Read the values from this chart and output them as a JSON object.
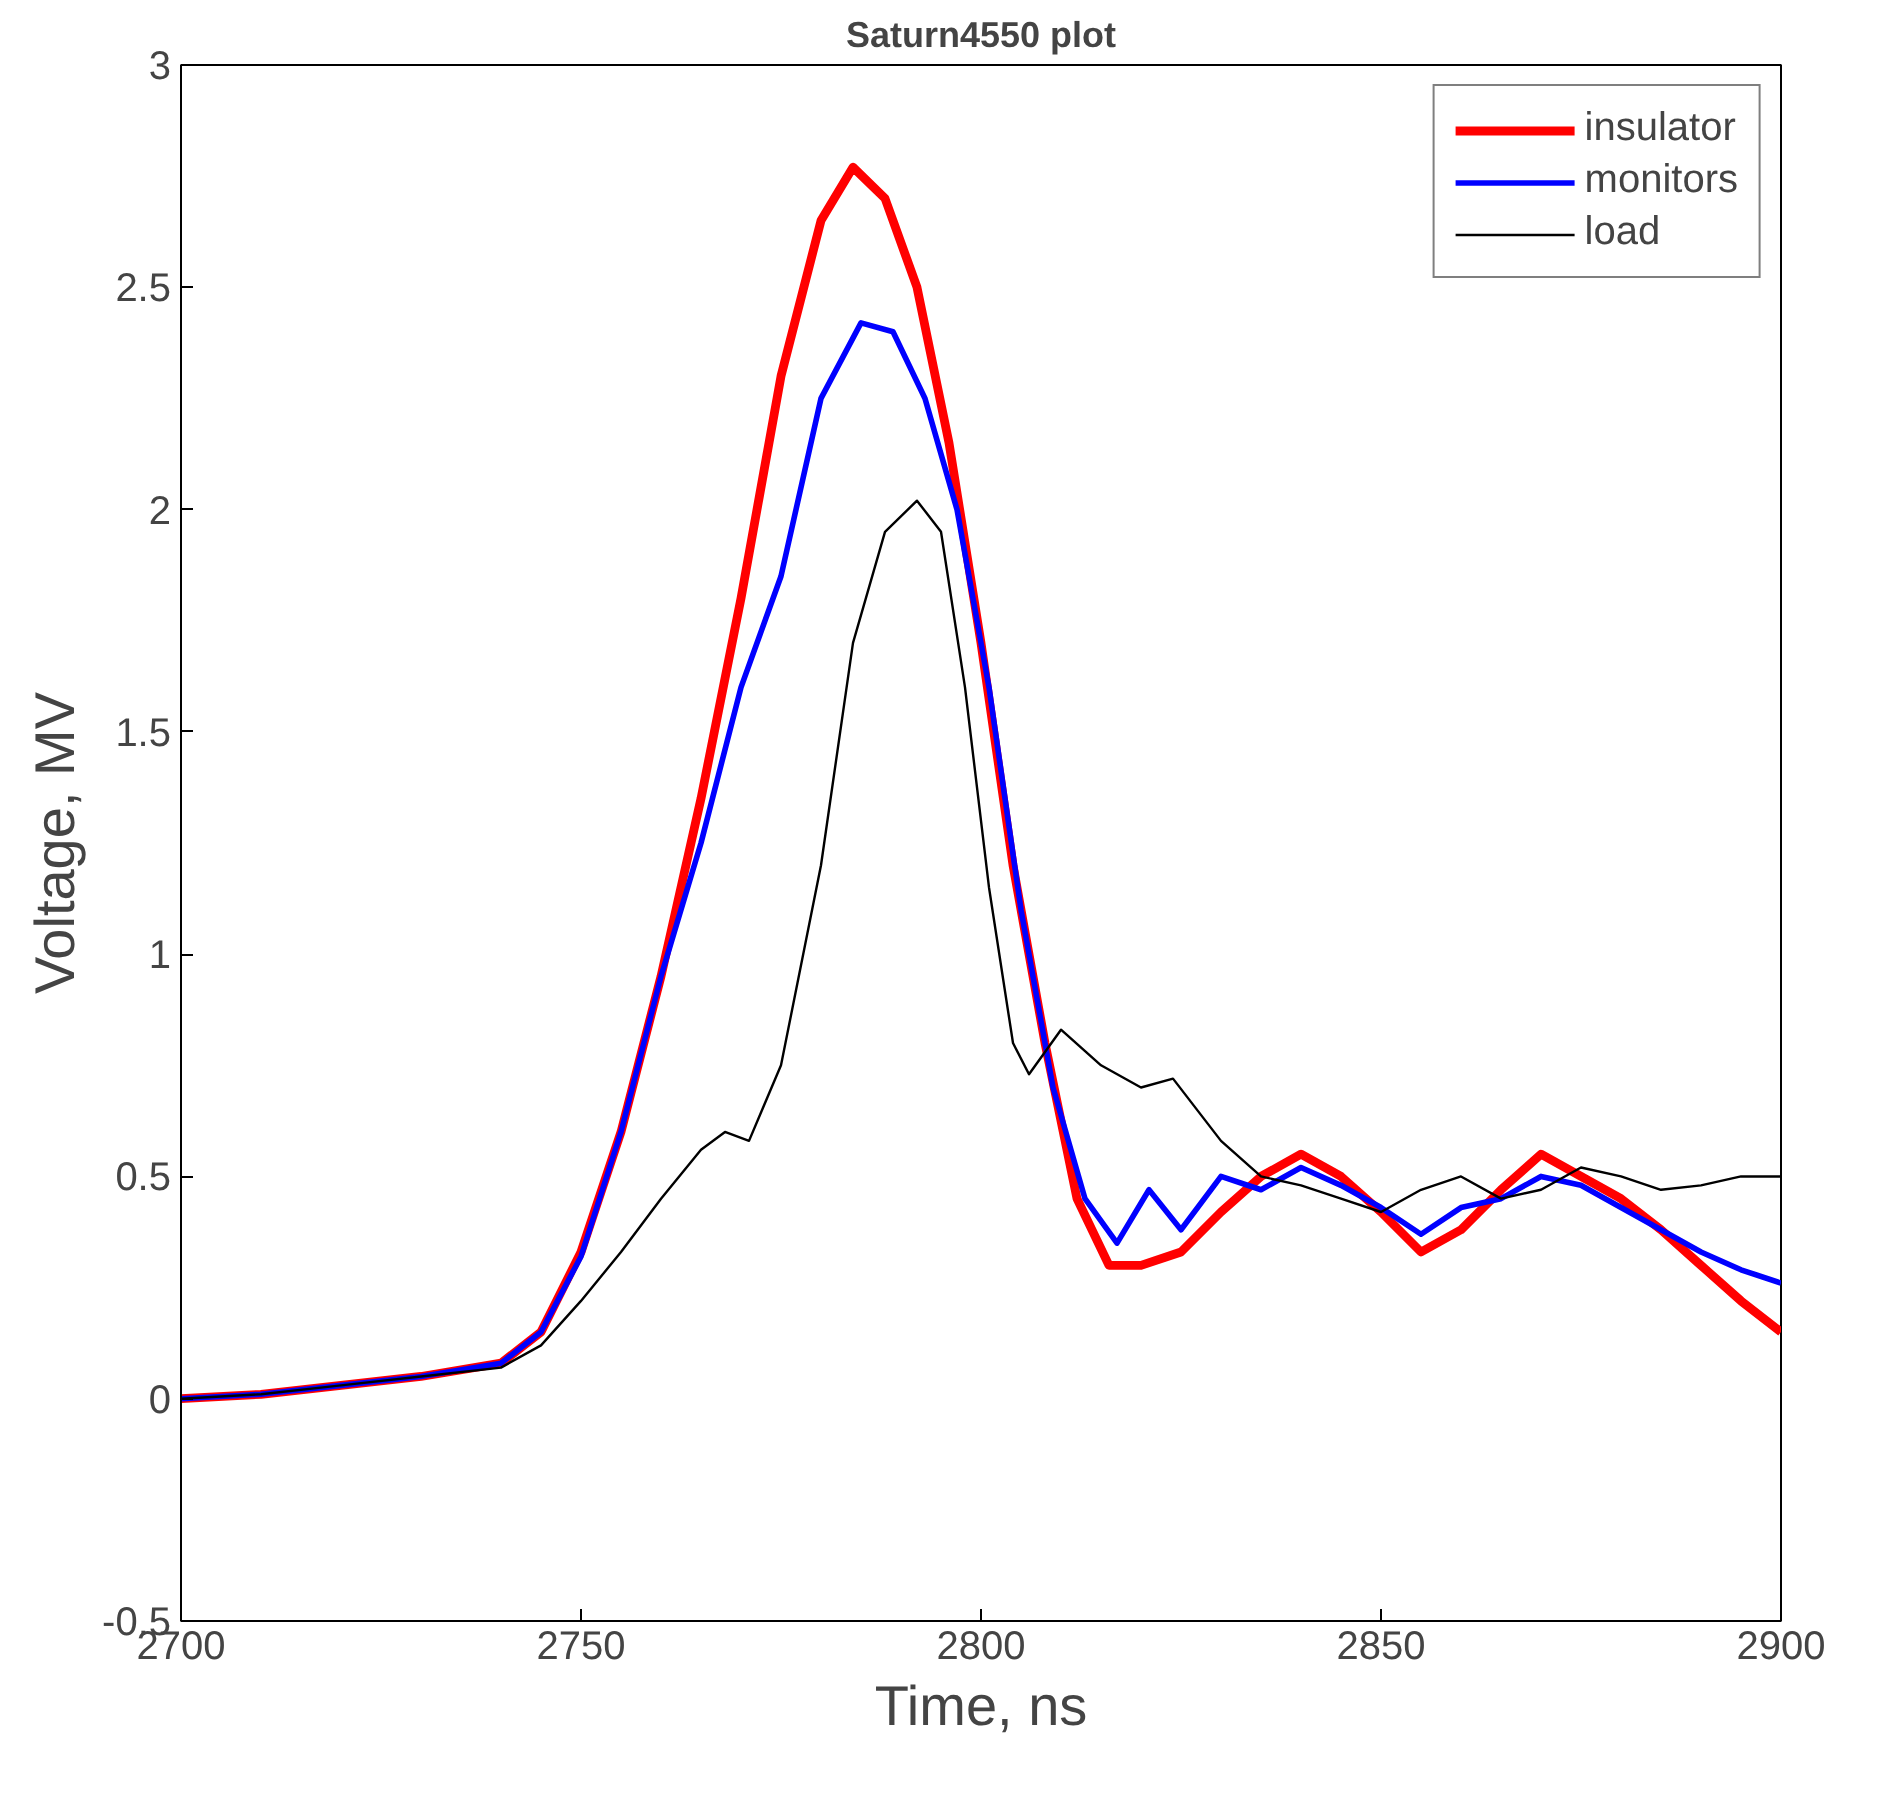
{
  "chart_data": {
    "type": "line",
    "title": "Saturn4550 plot",
    "xlabel": "Time, ns",
    "ylabel": "Voltage, MV",
    "xlim": [
      2700,
      2900
    ],
    "xticks": [
      2700,
      2750,
      2800,
      2850,
      2900
    ],
    "ylim": [
      -0.5,
      3
    ],
    "yticks": [
      -0.5,
      0,
      0.5,
      1,
      1.5,
      2,
      2.5,
      3
    ],
    "grid": false,
    "legend": "top right",
    "line_style": "solid",
    "series": [
      {
        "name": "insulator",
        "color": "#ff0000",
        "x": [
          2700,
          2710,
          2720,
          2730,
          2740,
          2745,
          2750,
          2755,
          2760,
          2765,
          2770,
          2775,
          2780,
          2784,
          2788,
          2792,
          2796,
          2800,
          2804,
          2808,
          2812,
          2816,
          2820,
          2825,
          2830,
          2835,
          2840,
          2845,
          2850,
          2855,
          2860,
          2865,
          2870,
          2875,
          2880,
          2885,
          2890,
          2895,
          2900
        ],
        "values": [
          0,
          0.01,
          0.03,
          0.05,
          0.08,
          0.15,
          0.33,
          0.6,
          0.95,
          1.35,
          1.8,
          2.3,
          2.65,
          2.77,
          2.7,
          2.5,
          2.15,
          1.7,
          1.2,
          0.8,
          0.45,
          0.3,
          0.3,
          0.33,
          0.42,
          0.5,
          0.55,
          0.5,
          0.42,
          0.33,
          0.38,
          0.47,
          0.55,
          0.5,
          0.45,
          0.38,
          0.3,
          0.22,
          0.15
        ]
      },
      {
        "name": "monitors",
        "color": "#0000ff",
        "x": [
          2700,
          2710,
          2720,
          2730,
          2740,
          2745,
          2750,
          2755,
          2760,
          2765,
          2770,
          2775,
          2780,
          2785,
          2789,
          2793,
          2797,
          2801,
          2805,
          2809,
          2813,
          2817,
          2821,
          2825,
          2830,
          2835,
          2840,
          2845,
          2850,
          2855,
          2860,
          2865,
          2870,
          2875,
          2880,
          2885,
          2890,
          2895,
          2900
        ],
        "values": [
          0,
          0.01,
          0.03,
          0.05,
          0.08,
          0.15,
          0.32,
          0.6,
          0.95,
          1.25,
          1.6,
          1.85,
          2.25,
          2.42,
          2.4,
          2.25,
          2.0,
          1.6,
          1.1,
          0.7,
          0.45,
          0.35,
          0.47,
          0.38,
          0.5,
          0.47,
          0.52,
          0.48,
          0.43,
          0.37,
          0.43,
          0.45,
          0.5,
          0.48,
          0.43,
          0.38,
          0.33,
          0.29,
          0.26
        ]
      },
      {
        "name": "load",
        "color": "#000000",
        "x": [
          2700,
          2710,
          2720,
          2730,
          2740,
          2745,
          2750,
          2755,
          2760,
          2765,
          2768,
          2771,
          2775,
          2780,
          2784,
          2788,
          2792,
          2795,
          2798,
          2801,
          2804,
          2806,
          2810,
          2815,
          2820,
          2824,
          2830,
          2835,
          2840,
          2845,
          2850,
          2855,
          2860,
          2865,
          2870,
          2875,
          2880,
          2885,
          2890,
          2895,
          2900
        ],
        "values": [
          0,
          0.01,
          0.03,
          0.05,
          0.07,
          0.12,
          0.22,
          0.33,
          0.45,
          0.56,
          0.6,
          0.58,
          0.75,
          1.2,
          1.7,
          1.95,
          2.02,
          1.95,
          1.6,
          1.15,
          0.8,
          0.73,
          0.83,
          0.75,
          0.7,
          0.72,
          0.58,
          0.5,
          0.48,
          0.45,
          0.42,
          0.47,
          0.5,
          0.45,
          0.47,
          0.52,
          0.5,
          0.47,
          0.48,
          0.5,
          0.5
        ]
      }
    ]
  }
}
